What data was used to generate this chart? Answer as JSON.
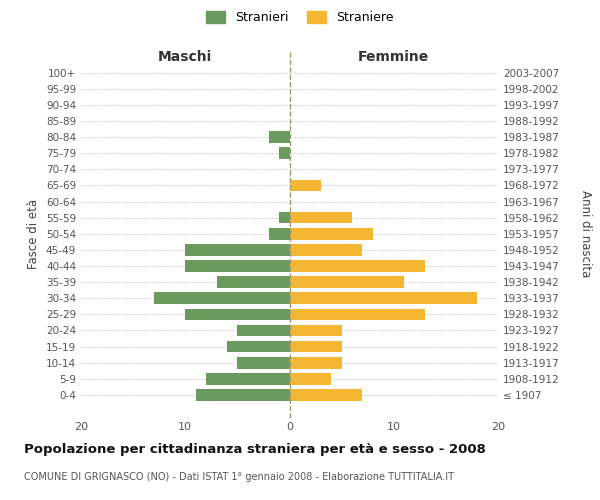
{
  "age_groups": [
    "100+",
    "95-99",
    "90-94",
    "85-89",
    "80-84",
    "75-79",
    "70-74",
    "65-69",
    "60-64",
    "55-59",
    "50-54",
    "45-49",
    "40-44",
    "35-39",
    "30-34",
    "25-29",
    "20-24",
    "15-19",
    "10-14",
    "5-9",
    "0-4"
  ],
  "birth_years": [
    "≤ 1907",
    "1908-1912",
    "1913-1917",
    "1918-1922",
    "1923-1927",
    "1928-1932",
    "1933-1937",
    "1938-1942",
    "1943-1947",
    "1948-1952",
    "1953-1957",
    "1958-1962",
    "1963-1967",
    "1968-1972",
    "1973-1977",
    "1978-1982",
    "1983-1987",
    "1988-1992",
    "1993-1997",
    "1998-2002",
    "2003-2007"
  ],
  "maschi": [
    0,
    0,
    0,
    0,
    2,
    1,
    0,
    0,
    0,
    1,
    2,
    10,
    10,
    7,
    13,
    10,
    5,
    6,
    5,
    8,
    9
  ],
  "femmine": [
    0,
    0,
    0,
    0,
    0,
    0,
    0,
    3,
    0,
    6,
    8,
    7,
    13,
    11,
    18,
    13,
    5,
    5,
    5,
    4,
    7
  ],
  "maschi_color": "#6b9a5e",
  "femmine_color": "#f5b731",
  "background_color": "#ffffff",
  "grid_color": "#d0d0d0",
  "title": "Popolazione per cittadinanza straniera per età e sesso - 2008",
  "subtitle": "COMUNE DI GRIGNASCO (NO) - Dati ISTAT 1° gennaio 2008 - Elaborazione TUTTITALIA.IT",
  "ylabel_left": "Fasce di età",
  "ylabel_right": "Anni di nascita",
  "xlabel_left": "Maschi",
  "xlabel_right": "Femmine",
  "legend_maschi": "Stranieri",
  "legend_femmine": "Straniere",
  "xlim": 20
}
